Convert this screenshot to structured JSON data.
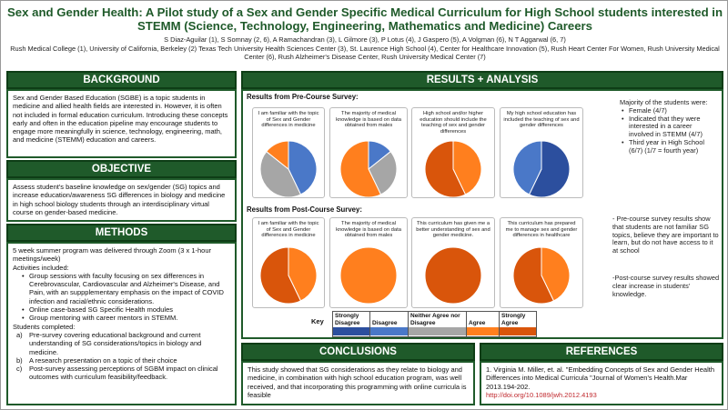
{
  "title": "Sex and Gender Health: A Pilot study of a Sex and Gender Specific Medical Curriculum for High School students interested in STEMM (Science, Technology, Engineering, Mathematics and Medicine) Careers",
  "authors_line1": "S Diaz-Aguilar (1), S Somnay (2, 6), A Ramachandran (3), L Gilmore (3), P Lotus (4), J Gaspero (5), A Volgman (6), N T Aggarwal (6, 7)",
  "authors_line2": "Rush Medical College (1), University of California, Berkeley (2) Texas Tech University Health Sciences Center (3), St. Laurence High School (4), Center for Healthcare Innovation (5), Rush Heart Center For Women, Rush University Medical Center (6), Rush Alzheimer's Disease Center, Rush University Medical Center (7)",
  "colors": {
    "brand_green": "#1f5a2a",
    "strongly_disagree": "#2c4f9e",
    "disagree": "#4a78c8",
    "neutral": "#a6a6a6",
    "agree": "#ff7f1e",
    "strongly_agree": "#d9550b"
  },
  "background": {
    "heading": "BACKGROUND",
    "text": "Sex and Gender Based Education (SGBE) is a topic students in medicine and allied health fields are interested in. However, it is often not included in formal education curriculum. Introducing these concepts early and often in the education pipeline may encourage students to engage more meaningfully in science, technology, engineering, math, and medicine (STEMM) education and careers."
  },
  "objective": {
    "heading": "OBJECTIVE",
    "text": "Assess student's baseline knowledge on sex/gender (SG) topics and increase education/awareness SG differences in biology and medicine in high school biology students through an interdisciplinary virtual course on gender-based medicine."
  },
  "methods": {
    "heading": "METHODS",
    "intro": "5 week summer program was delivered through Zoom (3 x 1-hour meetings/week)",
    "activities_label": "Activities included:",
    "activities": [
      "Group sessions with faculty focusing on sex differences in Cerebrovascular, Cardiovascular and Alzheimer's Disease, and Pain, with an suppplementary emphasis on the impact of COVID infection and racial/ethnic considerations.",
      "Online case-based SG Specific Health modules",
      "Group mentoring with career mentors in STEMM."
    ],
    "students_label": "Students completed:",
    "students": [
      {
        "mark": "a)",
        "text": "Pre-survey covering educational background and current understanding of SG considerations/topics  in biology and medicine."
      },
      {
        "mark": "b)",
        "text": "A research presentation on a topic of their choice"
      },
      {
        "mark": "c)",
        "text": "Post-survey assessing perceptions of SGBM impact on clinical outcomes with curriculum feasibility/feedback."
      }
    ]
  },
  "results": {
    "heading": "RESULTS + ANALYSIS",
    "pre_label": "Results from Pre-Course Survey:",
    "post_label": "Results from Post-Course Survey:",
    "pre_cards": [
      {
        "text": "I am familiar with the topic of Sex and Gender differences in medicine"
      },
      {
        "text": "The majority of medical knowledge is based on data obtained from males"
      },
      {
        "text": "High school and/or higher education should include the teaching of sex and gender differences"
      },
      {
        "text": "My high school education has included the teaching of sex and gender differences"
      }
    ],
    "post_cards": [
      {
        "text": "I am familiar with the topic of Sex and Gender differences in medicine"
      },
      {
        "text": "The majority of medical knowledge is based on data obtained from males"
      },
      {
        "text": "This curriculum has given me a better understanding of sex and gender medicine."
      },
      {
        "text": "This curriculum has prepared me to manage sex and gender differences in healthcare"
      }
    ],
    "demographics": {
      "intro": "Majority of the students were:",
      "items": [
        "Female (4/7)",
        "Indicated that they were interested in a career involved in STEMM (4/7)",
        "Third year in High School (6/7) (1/7 = fourth year)"
      ]
    },
    "note1": "- Pre-course survey results show that students are not familiar SG topics, believe they are important to learn, but do not have access to it at school",
    "note2": "-Post-course survey results showed clear increase in students' knowledge.",
    "key_label": "Key",
    "legend": [
      {
        "label": "Strongly Disagree",
        "color": "#2c4f9e"
      },
      {
        "label": "Disagree",
        "color": "#4a78c8"
      },
      {
        "label": "Neither Agree nor Disagree",
        "color": "#a6a6a6"
      },
      {
        "label": "Agree",
        "color": "#ff7f1e"
      },
      {
        "label": "Strongly Agree",
        "color": "#d9550b"
      }
    ]
  },
  "chart_data": [
    {
      "type": "pie",
      "title": "I am familiar with the topic of Sex and Gender differences in medicine",
      "survey": "pre",
      "slices": [
        {
          "category": "Disagree",
          "value": 3
        },
        {
          "category": "Neither Agree nor Disagree",
          "value": 3
        },
        {
          "category": "Agree",
          "value": 1
        }
      ]
    },
    {
      "type": "pie",
      "title": "The majority of medical knowledge is based on data obtained from males",
      "survey": "pre",
      "slices": [
        {
          "category": "Disagree",
          "value": 1
        },
        {
          "category": "Neither Agree nor Disagree",
          "value": 2
        },
        {
          "category": "Agree",
          "value": 4
        }
      ]
    },
    {
      "type": "pie",
      "title": "High school and/or higher education should include the teaching of sex and gender differences",
      "survey": "pre",
      "slices": [
        {
          "category": "Agree",
          "value": 3
        },
        {
          "category": "Strongly Agree",
          "value": 4
        }
      ]
    },
    {
      "type": "pie",
      "title": "My high school education has included the teaching of sex and gender differences",
      "survey": "pre",
      "slices": [
        {
          "category": "Strongly Disagree",
          "value": 4
        },
        {
          "category": "Disagree",
          "value": 3
        }
      ]
    },
    {
      "type": "pie",
      "title": "I am familiar with the topic of Sex and Gender differences in medicine",
      "survey": "post",
      "slices": [
        {
          "category": "Agree",
          "value": 3
        },
        {
          "category": "Strongly Agree",
          "value": 4
        }
      ]
    },
    {
      "type": "pie",
      "title": "The majority of medical knowledge is based on data obtained from males",
      "survey": "post",
      "slices": [
        {
          "category": "Agree",
          "value": 7
        }
      ]
    },
    {
      "type": "pie",
      "title": "This curriculum has given me a better understanding of sex and gender medicine.",
      "survey": "post",
      "slices": [
        {
          "category": "Strongly Agree",
          "value": 7
        }
      ]
    },
    {
      "type": "pie",
      "title": "This curriculum has prepared me to manage sex and gender differences in healthcare",
      "survey": "post",
      "slices": [
        {
          "category": "Agree",
          "value": 3
        },
        {
          "category": "Strongly Agree",
          "value": 4
        }
      ]
    }
  ],
  "conclusions": {
    "heading": "CONCLUSIONS",
    "text": "This study showed that SG considerations as they relate to biology and medicine, in combination with high school education program, was well received, and that incorporating this programming with online curricula is feasible"
  },
  "references": {
    "heading": "REFERENCES",
    "text": "1. Virginia M. Miller, et. al. \"Embedding Concepts of Sex and Gender Health Differences into Medical Curricula \"Journal of Women's Health.Mar 2013.194-202.",
    "link": "http://doi.org/10.1089/jwh.2012.4193"
  }
}
